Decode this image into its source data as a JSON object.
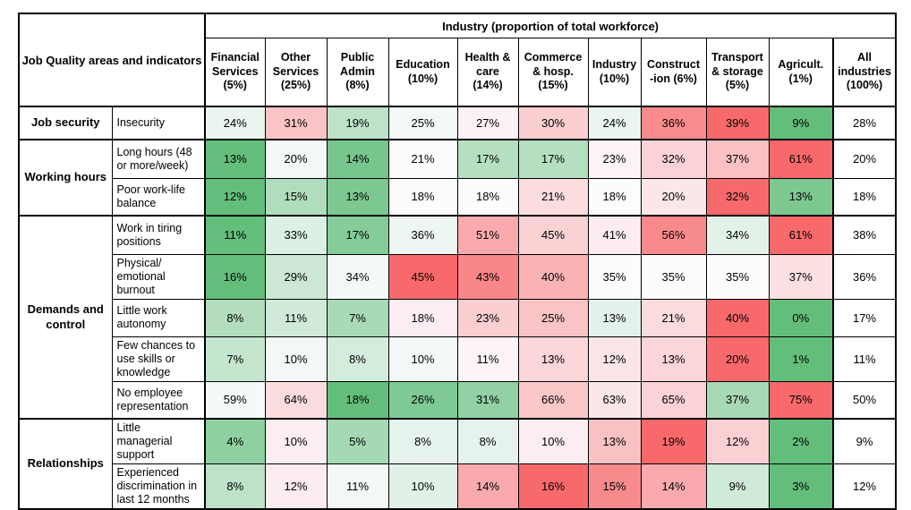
{
  "chart_data": {
    "type": "heatmap",
    "row_header_title": "Job Quality areas and indicators",
    "title": "Industry (proportion of total workforce)",
    "unit": "%",
    "columns": [
      "Financial\nServices\n(5%)",
      "Other\nServices\n(25%)",
      "Public\nAdmin\n(8%)",
      "Education\n(10%)",
      "Health &\ncare\n(14%)",
      "Commerce\n& hosp.\n(15%)",
      "Industry\n(10%)",
      "Construct\n-ion (6%)",
      "Transport\n& storage\n(5%)",
      "Agricult.\n(1%)",
      "All\nindustries\n(100%)"
    ],
    "groups": [
      {
        "label": "Job security",
        "rows": [
          {
            "label": "Insecurity",
            "values": [
              24,
              31,
              19,
              25,
              27,
              30,
              24,
              36,
              39,
              9
            ],
            "all_industries": 28
          }
        ]
      },
      {
        "label": "Working hours",
        "rows": [
          {
            "label": "Long hours (48\nor more/week)",
            "values": [
              13,
              20,
              14,
              21,
              17,
              17,
              23,
              32,
              37,
              61
            ],
            "all_industries": 20
          },
          {
            "label": "Poor work-life\nbalance",
            "values": [
              12,
              15,
              13,
              18,
              18,
              21,
              18,
              20,
              32,
              13
            ],
            "all_industries": 18
          }
        ]
      },
      {
        "label": "Demands and\ncontrol",
        "rows": [
          {
            "label": "Work in tiring\npositions",
            "values": [
              11,
              33,
              17,
              36,
              51,
              45,
              41,
              56,
              34,
              61
            ],
            "all_industries": 38
          },
          {
            "label": "Physical/\nemotional\nburnout",
            "values": [
              16,
              29,
              34,
              45,
              43,
              40,
              35,
              35,
              35,
              37
            ],
            "all_industries": 36
          },
          {
            "label": "Little work\nautonomy",
            "values": [
              8,
              11,
              7,
              18,
              23,
              25,
              13,
              21,
              40,
              0
            ],
            "all_industries": 17
          },
          {
            "label": "Few chances to\nuse skills or\nknowledge",
            "values": [
              7,
              10,
              8,
              10,
              11,
              13,
              12,
              13,
              20,
              1
            ],
            "all_industries": 11
          },
          {
            "label": "No employee\nrepresentation",
            "values": [
              59,
              64,
              18,
              26,
              31,
              66,
              63,
              65,
              37,
              75
            ],
            "all_industries": 50
          }
        ]
      },
      {
        "label": "Relationships",
        "rows": [
          {
            "label": "Little\nmanagerial\nsupport",
            "values": [
              4,
              10,
              5,
              8,
              8,
              10,
              13,
              19,
              12,
              2
            ],
            "all_industries": 9
          },
          {
            "label": "Experienced\ndiscrimination in\nlast 12 months",
            "values": [
              8,
              12,
              11,
              10,
              14,
              16,
              15,
              14,
              9,
              3
            ],
            "all_industries": 12
          }
        ]
      }
    ],
    "color_scale": {
      "low_color": "#63BE7B",
      "mid_color": "#FCFCFF",
      "high_color": "#F8696B",
      "mid_rule": "row median of the 10 industry columns",
      "all_industries_color": "#FFFFFF"
    }
  }
}
